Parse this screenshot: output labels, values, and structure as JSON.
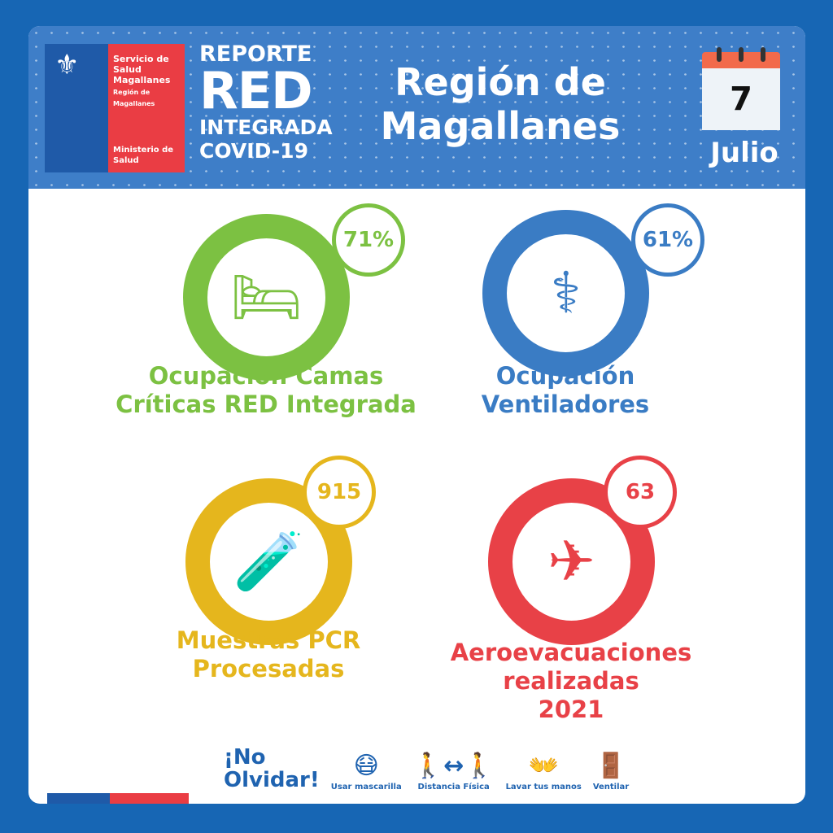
{
  "header": {
    "org": {
      "line1": "Servicio de",
      "line2": "Salud",
      "line3": "Magallanes",
      "sub1": "Región de",
      "sub2": "Magallanes",
      "ministry1": "Ministerio de",
      "ministry2": "Salud"
    },
    "report": {
      "l1": "REPORTE",
      "l2": "RED",
      "l3": "INTEGRADA",
      "l4": "COVID-19"
    },
    "title_l1": "Región de",
    "title_l2": "Magallanes",
    "date": {
      "day": "7",
      "month": "Julio"
    }
  },
  "metrics": [
    {
      "value": "71%",
      "label_l1": "Ocupación Camas",
      "label_l2": "Críticas RED Integrada",
      "label_l3": "",
      "color": "#7cc142",
      "icon": "hospital-bed-icon"
    },
    {
      "value": "61%",
      "label_l1": "Ocupación",
      "label_l2": "Ventiladores",
      "label_l3": "",
      "color": "#3a7cc4",
      "icon": "ventilator-icon"
    },
    {
      "value": "915",
      "label_l1": "Muestras PCR",
      "label_l2": "Procesadas",
      "label_l3": "",
      "color": "#e5b61d",
      "icon": "test-tubes-icon"
    },
    {
      "value": "63",
      "label_l1": "Aeroevacuaciones",
      "label_l2": "realizadas",
      "label_l3": "2021",
      "color": "#e84147",
      "icon": "airplane-icon"
    }
  ],
  "footer": {
    "reminder_l1": "¡No",
    "reminder_l2": "Olvidar!",
    "items": [
      {
        "label": "Usar mascarilla",
        "icon": "mask-icon"
      },
      {
        "label": "Distancia Física",
        "icon": "distance-icon"
      },
      {
        "label": "Lavar tus manos",
        "icon": "hand-wash-icon"
      },
      {
        "label": "Ventilar",
        "icon": "window-icon"
      }
    ]
  }
}
